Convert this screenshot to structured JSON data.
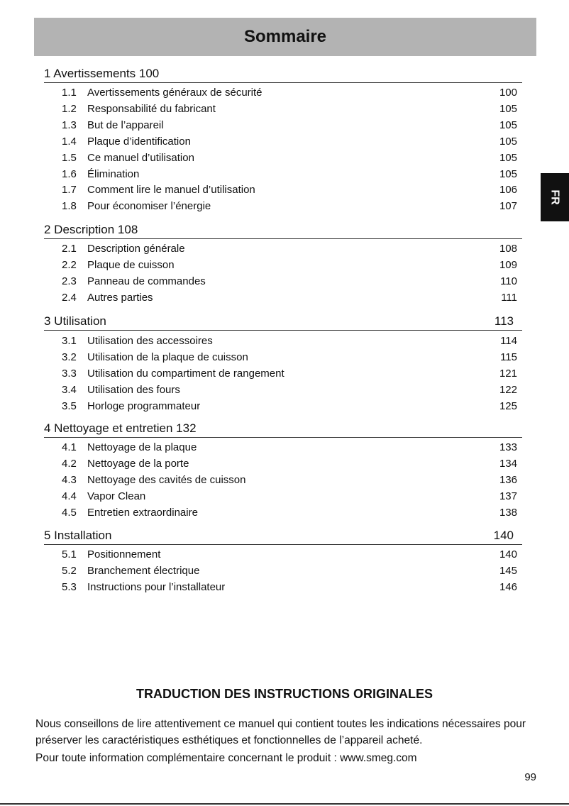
{
  "header": {
    "title": "Sommaire"
  },
  "lang_tab": "FR",
  "sections": [
    {
      "heading": "1 Avertissements 100",
      "page": "",
      "items": [
        {
          "num": "1.1",
          "title": "Avertissements généraux de sécurité",
          "page": "100"
        },
        {
          "num": "1.2",
          "title": "Responsabilité du fabricant",
          "page": "105"
        },
        {
          "num": "1.3",
          "title": "But de l’appareil",
          "page": "105"
        },
        {
          "num": "1.4",
          "title": "Plaque d’identification",
          "page": "105"
        },
        {
          "num": "1.5",
          "title": "Ce manuel d’utilisation",
          "page": "105"
        },
        {
          "num": "1.6",
          "title": "Élimination",
          "page": "105"
        },
        {
          "num": "1.7",
          "title": "Comment lire le manuel d’utilisation",
          "page": "106"
        },
        {
          "num": "1.8",
          "title": "Pour économiser l’énergie",
          "page": "107"
        }
      ]
    },
    {
      "heading": "2 Description 108",
      "page": "",
      "items": [
        {
          "num": "2.1",
          "title": "Description générale",
          "page": "108"
        },
        {
          "num": "2.2",
          "title": "Plaque de cuisson",
          "page": "109"
        },
        {
          "num": "2.3",
          "title": "Panneau de commandes",
          "page": "110"
        },
        {
          "num": "2.4",
          "title": "Autres parties",
          "page": "111"
        }
      ]
    },
    {
      "heading": "3 Utilisation",
      "page": "113",
      "items": [
        {
          "num": "3.1",
          "title": "Utilisation des accessoires",
          "page": "114"
        },
        {
          "num": "3.2",
          "title": "Utilisation de la plaque de cuisson",
          "page": "115"
        },
        {
          "num": "3.3",
          "title": "Utilisation du compartiment de rangement",
          "page": "121"
        },
        {
          "num": "3.4",
          "title": "Utilisation des fours",
          "page": "122"
        },
        {
          "num": "3.5",
          "title": "Horloge programmateur",
          "page": "125"
        }
      ]
    },
    {
      "heading": "4 Nettoyage et entretien 132",
      "page": "",
      "items": [
        {
          "num": "4.1",
          "title": "Nettoyage de la plaque",
          "page": "133"
        },
        {
          "num": "4.2",
          "title": "Nettoyage de la porte",
          "page": "134"
        },
        {
          "num": "4.3",
          "title": "Nettoyage des cavités de cuisson",
          "page": "136"
        },
        {
          "num": "4.4",
          "title": "Vapor Clean",
          "page": "137"
        },
        {
          "num": "4.5",
          "title": "Entretien extraordinaire",
          "page": "138"
        }
      ]
    },
    {
      "heading": "5 Installation",
      "page": "140",
      "items": [
        {
          "num": "5.1",
          "title": "Positionnement",
          "page": "140"
        },
        {
          "num": "5.2",
          "title": "Branchement électrique",
          "page": "145"
        },
        {
          "num": "5.3",
          "title": "Instructions pour l’installateur",
          "page": "146"
        }
      ]
    }
  ],
  "footer": {
    "title": "TRADUCTION DES INSTRUCTIONS ORIGINALES",
    "para1": "Nous conseillons de lire attentivement ce manuel qui contient toutes les indications nécessaires pour préserver les caractéristiques esthétiques et fonctionnelles de l’appareil acheté.",
    "para2": "Pour toute information complémentaire concernant le produit : www.smeg.com",
    "page_number": "99"
  }
}
